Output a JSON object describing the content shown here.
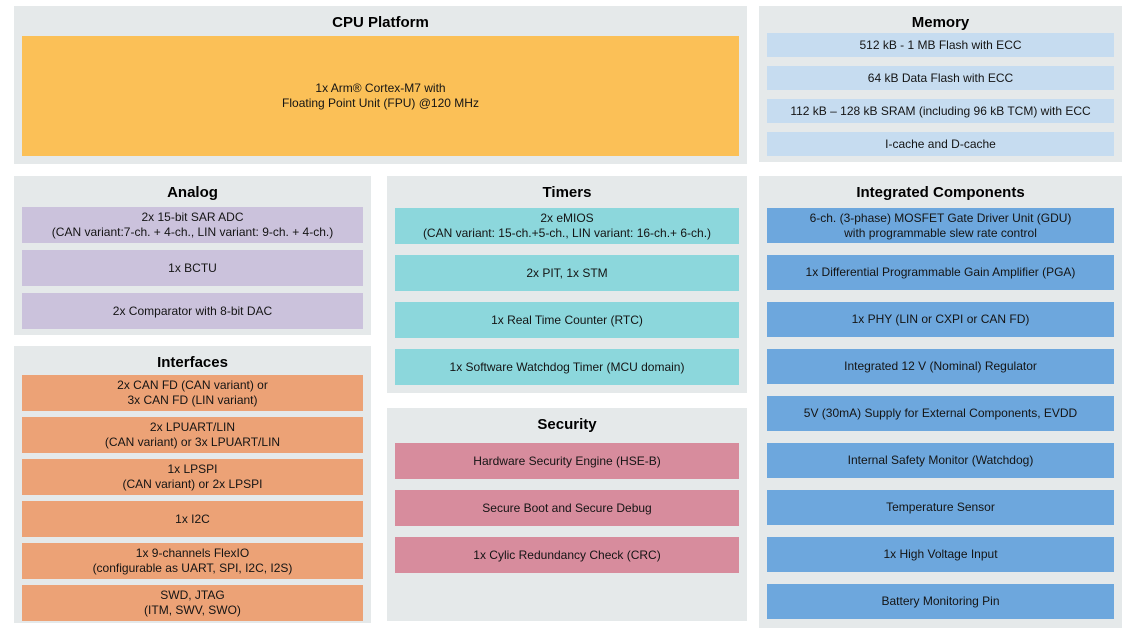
{
  "diagram": {
    "title": "MCU block diagram",
    "colors": {
      "panel_bg": "#e5e9ea",
      "cpu_block": "#fbc057",
      "memory_row": "#c6dcf0",
      "analog_row": "#cbc2dc",
      "interfaces_row": "#eca276",
      "timers_row": "#8cd7dc",
      "security_row": "#d78c9d",
      "integrated_row": "#6da7dd"
    },
    "sections": {
      "cpu_platform": {
        "title": "CPU Platform",
        "block": "1x Arm® Cortex-M7 with\nFloating Point Unit (FPU) @120 MHz"
      },
      "memory": {
        "title": "Memory",
        "rows": [
          "512 kB - 1 MB Flash with ECC",
          "64 kB Data Flash with ECC",
          "112 kB – 128 kB SRAM (including 96 kB TCM) with ECC",
          "I-cache and D-cache"
        ]
      },
      "analog": {
        "title": "Analog",
        "rows": [
          "2x 15-bit SAR ADC\n(CAN variant:7-ch. + 4-ch., LIN variant: 9-ch. + 4-ch.)",
          "1x BCTU",
          "2x Comparator with 8-bit DAC"
        ]
      },
      "interfaces": {
        "title": "Interfaces",
        "rows": [
          "2x CAN FD (CAN variant) or\n3x CAN FD (LIN variant)",
          "2x LPUART/LIN\n(CAN variant) or 3x LPUART/LIN",
          "1x LPSPI\n(CAN variant) or 2x LPSPI",
          "1x I2C",
          "1x 9-channels FlexIO\n(configurable as UART, SPI, I2C, I2S)",
          "SWD, JTAG\n(ITM, SWV, SWO)"
        ]
      },
      "timers": {
        "title": "Timers",
        "rows": [
          "2x eMIOS\n(CAN variant: 15-ch.+5-ch., LIN variant: 16-ch.+ 6-ch.)",
          "2x PIT, 1x STM",
          "1x Real Time Counter (RTC)",
          "1x Software Watchdog Timer (MCU domain)"
        ]
      },
      "security": {
        "title": "Security",
        "rows": [
          "Hardware Security Engine (HSE-B)",
          "Secure Boot and Secure Debug",
          "1x Cylic Redundancy Check (CRC)"
        ]
      },
      "integrated_components": {
        "title": "Integrated Components",
        "rows": [
          "6-ch. (3-phase) MOSFET Gate Driver Unit (GDU)\nwith programmable slew rate control",
          "1x Differential Programmable Gain Amplifier (PGA)",
          "1x PHY (LIN or CXPI or CAN FD)",
          "Integrated 12 V (Nominal) Regulator",
          "5V (30mA) Supply for External Components, EVDD",
          "Internal Safety Monitor (Watchdog)",
          "Temperature Sensor",
          "1x High Voltage Input",
          "Battery Monitoring Pin"
        ]
      }
    }
  }
}
